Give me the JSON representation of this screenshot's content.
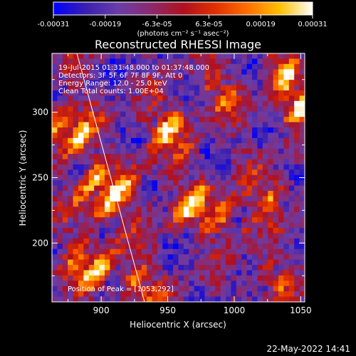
{
  "window": {
    "background": "#000000"
  },
  "chart_data": {
    "type": "heatmap",
    "title": "Reconstructed RHESSI Image",
    "xlabel": "Heliocentric X (arcsec)",
    "ylabel": "Heliocentric Y (arcsec)",
    "xlim": [
      863,
      1053
    ],
    "ylim": [
      155,
      345
    ],
    "x_ticks": [
      "900",
      "950",
      "1000",
      "1050"
    ],
    "y_ticks": [
      "200",
      "250",
      "300"
    ],
    "grid": false,
    "colorbar": {
      "range": [
        -0.00031,
        0.00031
      ],
      "tick_labels": [
        "-0.00031",
        "-0.00019",
        "-6.3e-05",
        "6.3e-05",
        "0.00019",
        "0.00031"
      ],
      "label": "(photons cm⁻² s⁻¹ asec⁻²)",
      "colormap": [
        "#0000ff",
        "#3a1fb0",
        "#6a3da8",
        "#8b2a6e",
        "#b01020",
        "#e03000",
        "#ff7000",
        "#ffc000",
        "#ffffff"
      ]
    },
    "annotations": [
      "19-Jul-2015 01:31:48.000 to 01:37:48.000",
      "Detectors: 3F 5F 6F 7F 8F 9F, Att 0",
      "Energy Range: 12.0 - 25.0 keV",
      "Clean   Total counts: 1.00E+04"
    ],
    "peak_label": "Position of Peak = [1053,292]"
  },
  "footer": {
    "date": "22-May-2022 14:41"
  }
}
